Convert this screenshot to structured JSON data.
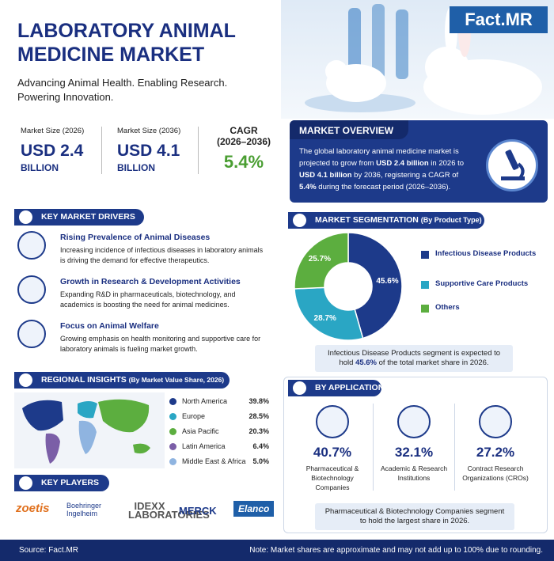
{
  "header": {
    "logo": "Fact.MR",
    "title_lines": [
      "LABORATORY ANIMAL",
      "MEDICINE MARKET"
    ],
    "subtitle_lines": [
      "Advancing Animal Health. Enabling Research.",
      "Powering Innovation."
    ]
  },
  "stats": [
    {
      "label": "Market Size (2026)",
      "value": "USD 2.4",
      "unit": "BILLION"
    },
    {
      "label": "Market Size (2036)",
      "value": "USD 4.1",
      "unit": "BILLION"
    },
    {
      "label": "CAGR",
      "period": "(2026–2036)",
      "value": "5.4%"
    }
  ],
  "overview": {
    "title": "MARKET OVERVIEW",
    "parts": [
      "The global laboratory animal medicine market is projected to grow from ",
      "USD 2.4 billion",
      " in 2026 to ",
      "USD 4.1 billion",
      " by 2036, registering a CAGR of ",
      "5.4%",
      " during the forecast period (2026–2036)."
    ]
  },
  "drivers": {
    "title": "KEY MARKET DRIVERS",
    "items": [
      {
        "title": "Rising Prevalence of Animal Diseases",
        "text": "Increasing incidence of infectious diseases in laboratory animals is driving the demand for effective therapeutics."
      },
      {
        "title": "Growth in Research & Development Activities",
        "text": "Expanding R&D in pharmaceuticals, biotechnology, and academics is boosting the need for animal medicines."
      },
      {
        "title": "Focus on Animal Welfare",
        "text": "Growing emphasis on health monitoring and supportive care for laboratory animals is fueling market growth."
      }
    ]
  },
  "regional": {
    "title": "REGIONAL INSIGHTS",
    "subtitle": "(By Market Value Share, 2026)",
    "regions": [
      {
        "name": "North America",
        "share": "39.8%",
        "color": "#1d3a8a"
      },
      {
        "name": "Europe",
        "share": "28.5%",
        "color": "#2aa6c4"
      },
      {
        "name": "Asia Pacific",
        "share": "20.3%",
        "color": "#5cae3f"
      },
      {
        "name": "Latin America",
        "share": "6.4%",
        "color": "#7b5ea7"
      },
      {
        "name": "Middle East & Africa",
        "share": "5.0%",
        "color": "#8fb4e0"
      }
    ]
  },
  "players": {
    "title": "KEY PLAYERS",
    "logos": [
      "zoetis",
      "Boehringer Ingelheim",
      "IDEXX LABORATORIES",
      "MERCK",
      "Elanco"
    ]
  },
  "chart_data": {
    "type": "pie",
    "title": "MARKET SEGMENTATION",
    "subtitle": "(By Product Type)",
    "categories": [
      "Infectious Disease Products",
      "Supportive Care Products",
      "Others"
    ],
    "values": [
      45.6,
      28.7,
      25.7
    ],
    "value_labels": [
      "45.6%",
      "28.7%",
      "25.7%"
    ],
    "colors": [
      "#1d3a8a",
      "#2aa6c4",
      "#5cae3f"
    ],
    "note_parts": [
      "Infectious Disease Products segment is expected to hold ",
      "45.6%",
      " of the total market share in 2026."
    ]
  },
  "application": {
    "title": "BY APPLICATION",
    "items": [
      {
        "share": "40.7%",
        "name": "Pharmaceutical & Biotechnology Companies"
      },
      {
        "share": "32.1%",
        "name": "Academic & Research Institutions"
      },
      {
        "share": "27.2%",
        "name": "Contract Research Organizations (CROs)"
      }
    ],
    "note": "Pharmaceutical & Biotechnology Companies segment to hold the largest share in 2026."
  },
  "footer": {
    "source": "Source: Fact.MR",
    "note": "Note: Market shares are approximate and may not add up to 100% due to rounding."
  }
}
